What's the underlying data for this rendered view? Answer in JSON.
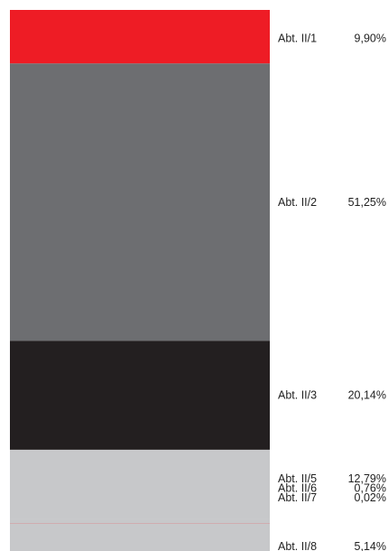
{
  "chart_data": {
    "type": "bar",
    "orientation": "stacked-vertical-100",
    "title": "",
    "xlabel": "",
    "ylabel": "",
    "ylim": [
      0,
      100
    ],
    "grid": false,
    "legend": "none",
    "segments": [
      {
        "label": "Abt. II/1",
        "value_label": "9,90%",
        "value": 9.9,
        "color": "#ee1c25"
      },
      {
        "label": "Abt. II/2",
        "value_label": "51,25%",
        "value": 51.25,
        "color": "#6d6e71"
      },
      {
        "label": "Abt. II/3",
        "value_label": "20,14%",
        "value": 20.14,
        "color": "#231f20"
      },
      {
        "label": "Abt. II/5",
        "value_label": "12,79%",
        "value": 12.79,
        "color": "#c7c8ca"
      },
      {
        "label": "Abt. II/6",
        "value_label": "0,76%",
        "value": 0.76,
        "color": "#c7c8ca"
      },
      {
        "label": "Abt. II/7",
        "value_label": "0,02%",
        "value": 0.02,
        "color": "#ee1c25"
      },
      {
        "label": "Abt. II/8",
        "value_label": "5,14%",
        "value": 5.14,
        "color": "#c7c8ca"
      }
    ]
  }
}
